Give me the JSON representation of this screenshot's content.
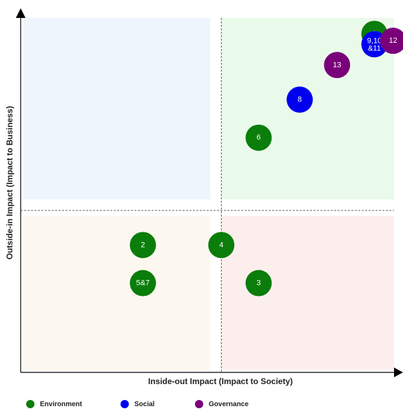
{
  "chart_data": {
    "type": "scatter",
    "xlabel": "Inside-out Impact (Impact to Society)",
    "ylabel": "Outside-in Impact (Impact to Business)",
    "grid": false,
    "legend_position": "bottom",
    "quadrants": [
      {
        "name": "top-left",
        "color": "#eef5fc"
      },
      {
        "name": "top-right",
        "color": "#eafaea"
      },
      {
        "name": "bottom-left",
        "color": "#fdf8ef"
      },
      {
        "name": "bottom-right",
        "color": "#fdeeee"
      }
    ],
    "series": [
      {
        "name": "Environment",
        "color": "#0a7d0a",
        "points": [
          {
            "label": "1",
            "x": 9.4,
            "y": 9.5
          },
          {
            "label": "6",
            "x": 6.3,
            "y": 6.5
          },
          {
            "label": "2",
            "x": 3.2,
            "y": 3.4
          },
          {
            "label": "4",
            "x": 5.3,
            "y": 3.4
          },
          {
            "label": "5&7",
            "x": 3.2,
            "y": 2.3
          },
          {
            "label": "3",
            "x": 6.3,
            "y": 2.3
          }
        ]
      },
      {
        "name": "Social",
        "color": "#0000ee",
        "points": [
          {
            "label": "9,10\n&11",
            "x": 9.4,
            "y": 9.2
          },
          {
            "label": "8",
            "x": 7.4,
            "y": 7.6
          }
        ]
      },
      {
        "name": "Governance",
        "color": "#7a007a",
        "points": [
          {
            "label": "12",
            "x": 9.9,
            "y": 9.3
          },
          {
            "label": "13",
            "x": 8.4,
            "y": 8.6
          }
        ]
      }
    ],
    "xlim": [
      0,
      10
    ],
    "ylim": [
      0,
      10
    ],
    "threshold_x": 5.3,
    "threshold_y": 4.4
  },
  "legend": [
    {
      "label": "Environment",
      "color": "#0a7d0a"
    },
    {
      "label": "Social",
      "color": "#0000ee"
    },
    {
      "label": "Governance",
      "color": "#7a007a"
    }
  ]
}
